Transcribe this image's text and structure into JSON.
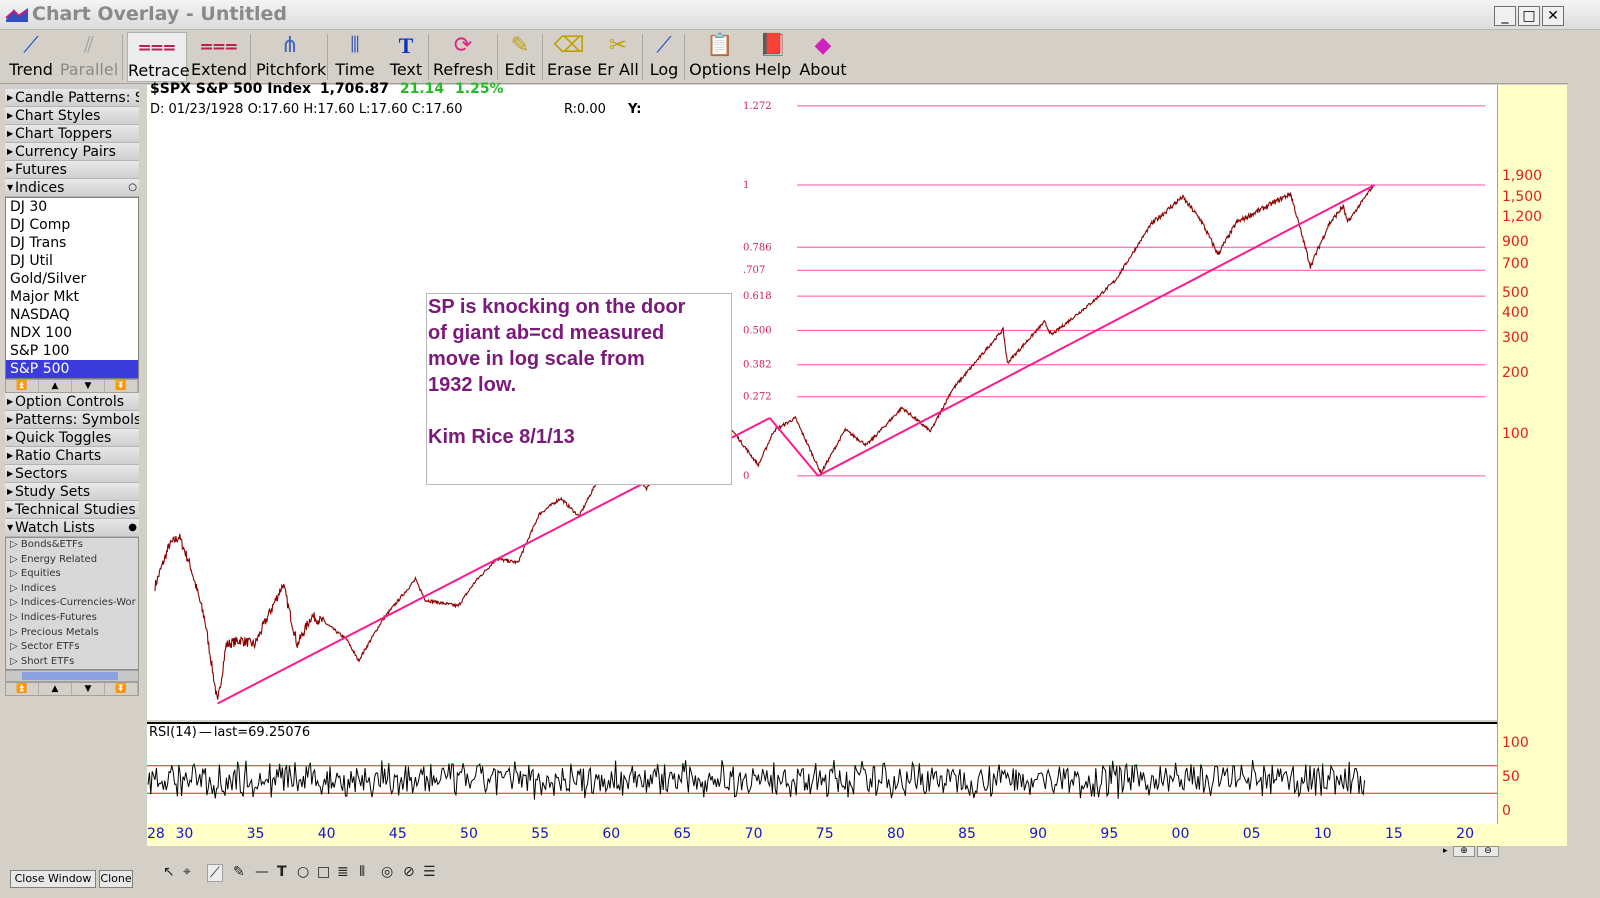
{
  "window": {
    "title": "Chart Overlay  -  Untitled",
    "btn_min": "_",
    "btn_max": "□",
    "btn_close": "✕"
  },
  "toolbar": [
    {
      "id": "trend",
      "label": "Trend",
      "icon": "pen-line-icon",
      "dim": false
    },
    {
      "id": "parallel",
      "label": "Parallel",
      "icon": "parallel-lines-icon",
      "dim": true
    },
    {
      "id": "retrace",
      "label": "Retrace",
      "icon": "retrace-icon",
      "dim": false,
      "active": true
    },
    {
      "id": "extend",
      "label": "Extend",
      "icon": "extend-icon",
      "dim": false
    },
    {
      "id": "pitchfork",
      "label": "Pitchfork",
      "icon": "pitchfork-icon",
      "dim": false
    },
    {
      "id": "time",
      "label": "Time",
      "icon": "time-lines-icon",
      "dim": false
    },
    {
      "id": "text",
      "label": "Text",
      "icon": "text-icon",
      "dim": false
    },
    {
      "id": "refresh",
      "label": "Refresh",
      "icon": "refresh-icon",
      "dim": false
    },
    {
      "id": "edit",
      "label": "Edit",
      "icon": "pencil-icon",
      "dim": false
    },
    {
      "id": "erase",
      "label": "Erase",
      "icon": "eraser-icon",
      "dim": false
    },
    {
      "id": "erall",
      "label": "Er All",
      "icon": "erase-all-icon",
      "dim": false
    },
    {
      "id": "log",
      "label": "Log",
      "icon": "log-scale-icon",
      "dim": false
    },
    {
      "id": "options",
      "label": "Options",
      "icon": "clipboard-icon",
      "dim": false
    },
    {
      "id": "help",
      "label": "Help",
      "icon": "help-book-icon",
      "dim": false
    },
    {
      "id": "about",
      "label": "About",
      "icon": "about-icon",
      "dim": false
    }
  ],
  "sidebar": {
    "groups_top": [
      "Candle Patterns: S",
      "Chart Styles",
      "Chart Toppers",
      "Currency Pairs",
      "Futures",
      "Indices"
    ],
    "indices": [
      "DJ 30",
      "DJ Comp",
      "DJ Trans",
      "DJ Util",
      "Gold/Silver",
      "Major Mkt",
      "NASDAQ",
      "NDX 100",
      "S&P 100",
      "S&P 500"
    ],
    "selected_index": "S&P 500",
    "groups_mid": [
      "Option Controls",
      "Patterns: Symbols",
      "Quick Toggles",
      "Ratio Charts",
      "Sectors",
      "Study Sets",
      "Technical Studies",
      "Watch Lists"
    ],
    "watchlists": [
      "Bonds&ETFs",
      "Energy Related",
      "Equities",
      "Indices",
      "Indices-Currencies-Wor",
      "Indices-Futures",
      "Precious Metals",
      "Sector ETFs",
      "Short ETFs"
    ],
    "close_window": "Close Window",
    "clone": "Clone"
  },
  "header": {
    "symbol": "$SPX S&P 500 Index",
    "last": "1,706.87",
    "change": "21.14",
    "change_pct": "1.25%",
    "ohlc": "D:  01/23/1928 O:17.60 H:17.60 L:17.60 C:17.60",
    "r": "R:0.00",
    "y": "Y:"
  },
  "annotation": {
    "lines": [
      "SP is knocking on the door",
      "of giant ab=cd measured",
      "move in log scale from",
      "1932 low.",
      "",
      "Kim Rice  8/1/13"
    ]
  },
  "rsi": {
    "label": "RSI(14)",
    "last": "last=69.25076",
    "axis": [
      "100",
      "50",
      "0"
    ],
    "overbought": 70,
    "oversold": 30
  },
  "colors": {
    "price": "#8b0000",
    "trendline": "#ff1a8c",
    "fib": "#ff4f9e",
    "axis_text": "#e02020",
    "x_axis_text": "#1515cc",
    "note_text": "#7a1a7a",
    "change_text": "#22bb22"
  },
  "chart_data": {
    "type": "line",
    "title": "$SPX S&P 500 Index",
    "y_scale": "log",
    "y_ticks": [
      "1,900",
      "1,500",
      "1,200",
      "900",
      "700",
      "500",
      "400",
      "300",
      "200",
      "100"
    ],
    "x_ticks": [
      "28",
      "30",
      "35",
      "40",
      "45",
      "50",
      "55",
      "60",
      "65",
      "70",
      "75",
      "80",
      "85",
      "90",
      "95",
      "00",
      "05",
      "10",
      "15",
      "20"
    ],
    "fib_levels": [
      {
        "label": "1.272",
        "ratio": 1.272
      },
      {
        "label": "1",
        "ratio": 1.0
      },
      {
        "label": "0.786",
        "ratio": 0.786
      },
      {
        "label": ".707",
        "ratio": 0.707
      },
      {
        "label": "0.618",
        "ratio": 0.618
      },
      {
        "label": "0.500",
        "ratio": 0.5
      },
      {
        "label": "0.382",
        "ratio": 0.382
      },
      {
        "label": "0.272",
        "ratio": 0.272
      },
      {
        "label": "0",
        "ratio": 0.0
      }
    ],
    "series": [
      {
        "name": "$SPX",
        "points": [
          [
            1928.0,
            17.6
          ],
          [
            1929.0,
            28
          ],
          [
            1929.7,
            31
          ],
          [
            1930.5,
            22
          ],
          [
            1931.5,
            12
          ],
          [
            1932.4,
            4.6
          ],
          [
            1933.0,
            9
          ],
          [
            1934.0,
            9.5
          ],
          [
            1935.0,
            9
          ],
          [
            1937.0,
            18
          ],
          [
            1938.0,
            9
          ],
          [
            1939.0,
            12.5
          ],
          [
            1940.0,
            11.5
          ],
          [
            1941.5,
            9.5
          ],
          [
            1942.3,
            7.5
          ],
          [
            1944.0,
            12
          ],
          [
            1946.3,
            19
          ],
          [
            1947.0,
            15
          ],
          [
            1949.3,
            14
          ],
          [
            1950.5,
            18.5
          ],
          [
            1952.0,
            24
          ],
          [
            1953.5,
            23
          ],
          [
            1955.0,
            40
          ],
          [
            1956.5,
            48
          ],
          [
            1957.8,
            39
          ],
          [
            1959.0,
            57
          ],
          [
            1961.5,
            70
          ],
          [
            1962.5,
            53
          ],
          [
            1964.0,
            82
          ],
          [
            1966.0,
            94
          ],
          [
            1966.8,
            74
          ],
          [
            1968.5,
            106
          ],
          [
            1970.4,
            70
          ],
          [
            1971.5,
            104
          ],
          [
            1973.0,
            120
          ],
          [
            1974.8,
            64
          ],
          [
            1976.5,
            105
          ],
          [
            1978.0,
            88
          ],
          [
            1980.5,
            135
          ],
          [
            1982.5,
            103
          ],
          [
            1984.0,
            165
          ],
          [
            1987.6,
            330
          ],
          [
            1987.9,
            225
          ],
          [
            1990.5,
            360
          ],
          [
            1991.0,
            310
          ],
          [
            1994.0,
            460
          ],
          [
            1995.5,
            580
          ],
          [
            1998.0,
            1100
          ],
          [
            2000.2,
            1500
          ],
          [
            2001.5,
            1150
          ],
          [
            2002.7,
            780
          ],
          [
            2004.0,
            1120
          ],
          [
            2007.8,
            1560
          ],
          [
            2009.2,
            680
          ],
          [
            2010.5,
            1100
          ],
          [
            2011.5,
            1350
          ],
          [
            2011.8,
            1120
          ],
          [
            2013.6,
            1706.87
          ]
        ]
      }
    ]
  }
}
